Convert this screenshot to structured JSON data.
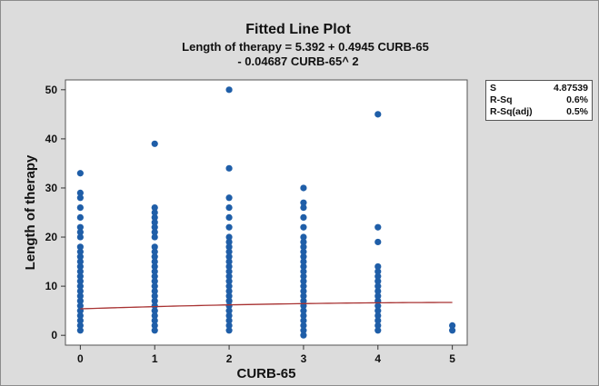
{
  "chart_data": {
    "type": "scatter",
    "title": "Fitted Line Plot",
    "subtitle_line1": "Length of therapy = 5.392 + 0.4945 CURB-65",
    "subtitle_line2": "- 0.04687 CURB-65^ 2",
    "xlabel": "CURB-65",
    "ylabel": "Length of therapy",
    "xlim": [
      -0.2,
      5.2
    ],
    "ylim": [
      -2,
      52
    ],
    "xticks": [
      "0",
      "1",
      "2",
      "3",
      "4",
      "5"
    ],
    "yticks": [
      "0",
      "10",
      "20",
      "30",
      "40",
      "50"
    ],
    "grid": false,
    "point_color": "#1f5ea8",
    "line_color": "#a83232",
    "series": [
      {
        "x": 0,
        "values": [
          1,
          2,
          3,
          4,
          5,
          6,
          7,
          8,
          9,
          10,
          11,
          12,
          13,
          14,
          15,
          16,
          17,
          18,
          20,
          21,
          22,
          24,
          26,
          28,
          29,
          33
        ]
      },
      {
        "x": 1,
        "values": [
          1,
          2,
          3,
          4,
          5,
          6,
          7,
          8,
          9,
          10,
          11,
          12,
          13,
          14,
          15,
          16,
          17,
          18,
          20,
          21,
          22,
          23,
          24,
          25,
          26,
          39
        ]
      },
      {
        "x": 2,
        "values": [
          1,
          2,
          3,
          4,
          5,
          6,
          7,
          8,
          9,
          10,
          11,
          12,
          13,
          14,
          15,
          16,
          17,
          18,
          19,
          20,
          22,
          24,
          26,
          28,
          34,
          50
        ]
      },
      {
        "x": 3,
        "values": [
          0,
          1,
          2,
          3,
          4,
          5,
          6,
          7,
          8,
          9,
          10,
          11,
          12,
          13,
          14,
          15,
          16,
          17,
          18,
          19,
          20,
          22,
          24,
          26,
          27,
          30
        ]
      },
      {
        "x": 4,
        "values": [
          1,
          2,
          3,
          4,
          5,
          6,
          7,
          8,
          9,
          10,
          11,
          12,
          13,
          14,
          19,
          22,
          45
        ]
      },
      {
        "x": 5,
        "values": [
          1,
          2
        ]
      }
    ],
    "fit": {
      "intercept": 5.392,
      "b1": 0.4945,
      "b2": -0.04687
    }
  },
  "stats": [
    {
      "label": "S",
      "value": "4.87539"
    },
    {
      "label": "R-Sq",
      "value": "0.6%"
    },
    {
      "label": "R-Sq(adj)",
      "value": "0.5%"
    }
  ]
}
